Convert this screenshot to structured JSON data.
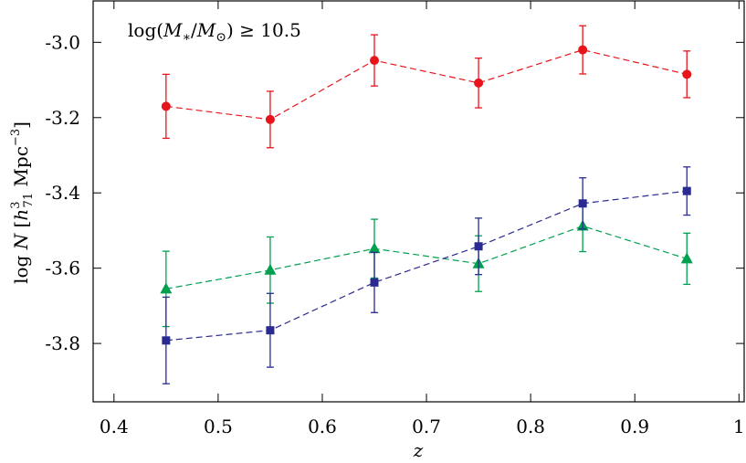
{
  "chart_data": {
    "type": "scatter",
    "title": "",
    "annotation": "log(M*/M⊙) ≥ 10.5",
    "xlabel": "z",
    "ylabel": "log N [h371 Mpc−3]",
    "xlim": [
      0.38,
      1.005
    ],
    "ylim": [
      -3.955,
      -2.89
    ],
    "xticks": [
      0.4,
      0.5,
      0.6,
      0.7,
      0.8,
      0.9,
      1.0
    ],
    "xtick_labels": [
      "0.4",
      "0.5",
      "0.6",
      "0.7",
      "0.8",
      "0.9",
      "1"
    ],
    "yticks": [
      -3.8,
      -3.6,
      -3.4,
      -3.2,
      -3.0
    ],
    "ytick_labels": [
      "-3.8",
      "-3.6",
      "-3.4",
      "-3.2",
      "-3.0"
    ],
    "grid": false,
    "series": [
      {
        "marker": "circle",
        "color": "#e8141c",
        "x": [
          0.45,
          0.55,
          0.65,
          0.75,
          0.85,
          0.95
        ],
        "y": [
          -3.17,
          -3.205,
          -3.048,
          -3.108,
          -3.02,
          -3.085
        ],
        "err_low": [
          0.085,
          0.075,
          0.068,
          0.066,
          0.064,
          0.062
        ],
        "err_high": [
          0.085,
          0.075,
          0.068,
          0.066,
          0.064,
          0.062
        ]
      },
      {
        "marker": "triangle",
        "color": "#00a050",
        "x": [
          0.45,
          0.55,
          0.65,
          0.75,
          0.85,
          0.95
        ],
        "y": [
          -3.655,
          -3.605,
          -3.548,
          -3.588,
          -3.488,
          -3.575
        ],
        "err_low": [
          0.1,
          0.088,
          0.078,
          0.074,
          0.068,
          0.068
        ],
        "err_high": [
          0.1,
          0.088,
          0.078,
          0.074,
          0.068,
          0.068
        ]
      },
      {
        "marker": "square",
        "color": "#2a2a90",
        "x": [
          0.45,
          0.55,
          0.65,
          0.75,
          0.85,
          0.95
        ],
        "y": [
          -3.792,
          -3.765,
          -3.638,
          -3.542,
          -3.428,
          -3.395
        ],
        "err_low": [
          0.115,
          0.098,
          0.08,
          0.075,
          0.068,
          0.064
        ],
        "err_high": [
          0.115,
          0.098,
          0.08,
          0.075,
          0.068,
          0.064
        ]
      }
    ]
  }
}
